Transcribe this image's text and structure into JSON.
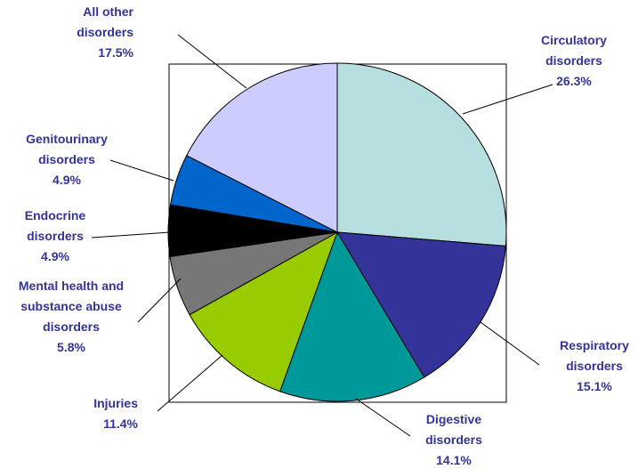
{
  "chart_data": {
    "type": "pie",
    "title": "",
    "slices": [
      {
        "name_lines": [
          "Circulatory",
          "disorders"
        ],
        "percent_label": "26.3%",
        "value": 26.3,
        "color": "#b8dfe0"
      },
      {
        "name_lines": [
          "Respiratory",
          "disorders"
        ],
        "percent_label": "15.1%",
        "value": 15.1,
        "color": "#333399"
      },
      {
        "name_lines": [
          "Digestive",
          "disorders"
        ],
        "percent_label": "14.1%",
        "value": 14.1,
        "color": "#009999"
      },
      {
        "name_lines": [
          "Injuries"
        ],
        "percent_label": "11.4%",
        "value": 11.4,
        "color": "#99cc00"
      },
      {
        "name_lines": [
          "Mental health and",
          "substance abuse",
          "disorders"
        ],
        "percent_label": "5.8%",
        "value": 5.8,
        "color": "#777777"
      },
      {
        "name_lines": [
          "Endocrine",
          "disorders"
        ],
        "percent_label": "4.9%",
        "value": 4.9,
        "color": "#000000"
      },
      {
        "name_lines": [
          "Genitourinary",
          "disorders"
        ],
        "percent_label": "4.9%",
        "value": 4.9,
        "color": "#0066cc"
      },
      {
        "name_lines": [
          "All other",
          "disorders"
        ],
        "percent_label": "17.5%",
        "value": 17.5,
        "color": "#ccccff"
      }
    ],
    "label_color": "#333399",
    "start": "12 o'clock, clockwise",
    "legend": "none"
  }
}
